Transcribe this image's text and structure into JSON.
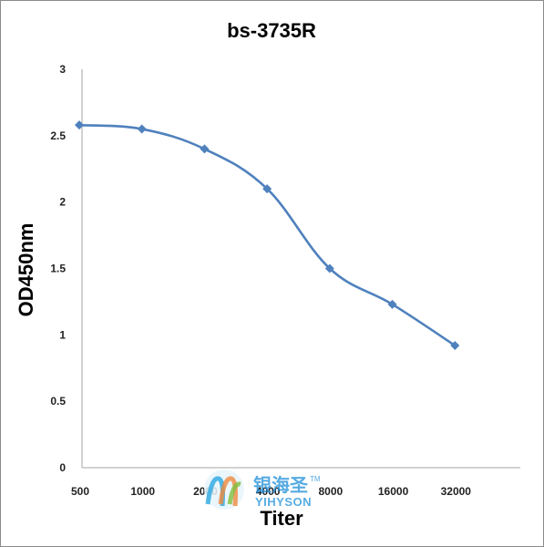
{
  "chart_data": {
    "type": "line",
    "title": "bs-3735R",
    "xlabel": "Titer",
    "ylabel": "OD450nm",
    "categories": [
      "500",
      "1000",
      "2000",
      "4000",
      "8000",
      "16000",
      "32000"
    ],
    "series": [
      {
        "values": [
          2.58,
          2.55,
          2.4,
          2.1,
          1.5,
          1.23,
          0.92
        ]
      }
    ],
    "ylim": [
      0,
      3
    ],
    "yticks": [
      "0",
      "0.5",
      "1",
      "1.5",
      "2",
      "2.5",
      "3"
    ],
    "grid": false,
    "legend": "none",
    "line_color": "#4f81bd",
    "marker": "diamond"
  },
  "watermark": {
    "text_cn": "银海圣",
    "text_en": "YIHYSON",
    "tm": "TM",
    "color": "#1f8fd9"
  }
}
